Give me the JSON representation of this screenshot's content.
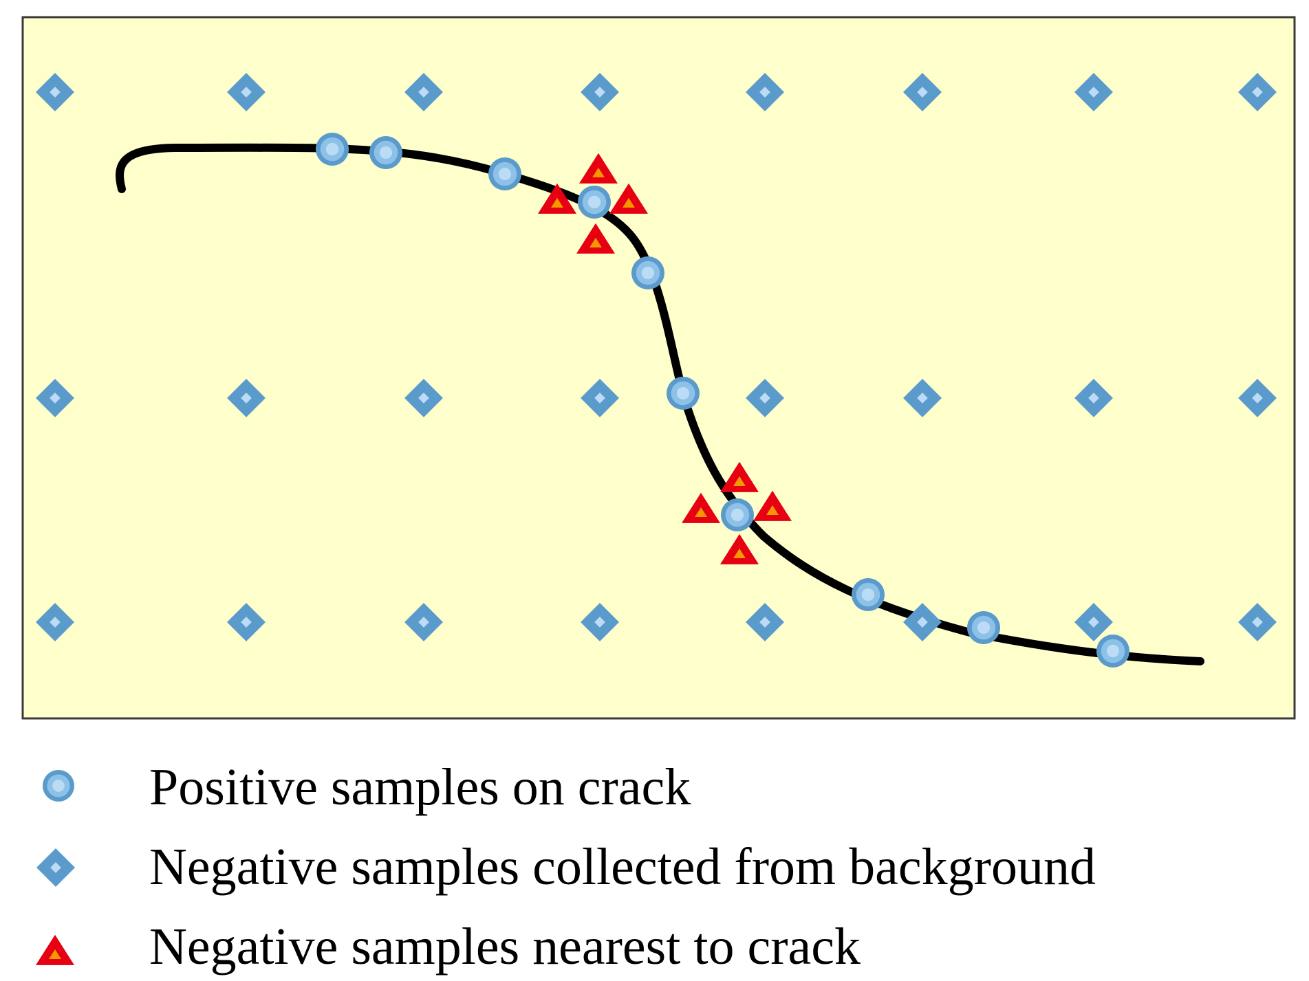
{
  "colors": {
    "panel_fill": "#ffffcc",
    "panel_border": "#3a3a3a",
    "crack_line": "#000000",
    "positive_fill": "#8ec1e8",
    "positive_ring": "#5b9bcc",
    "positive_center": "#bcdcf5",
    "negative_bg_fill": "#5b9bcc",
    "negative_bg_center": "#bcdcf5",
    "negative_near_fill": "#e60012",
    "negative_near_center": "#f39800"
  },
  "icons": {
    "positive": "circle-marker-icon",
    "negative_background": "diamond-marker-icon",
    "negative_nearest": "triangle-marker-icon"
  },
  "legend": {
    "positive_label": "Positive samples on crack",
    "negative_background_label": "Negative samples collected from background",
    "negative_nearest_label": "Negative samples nearest to crack"
  }
}
